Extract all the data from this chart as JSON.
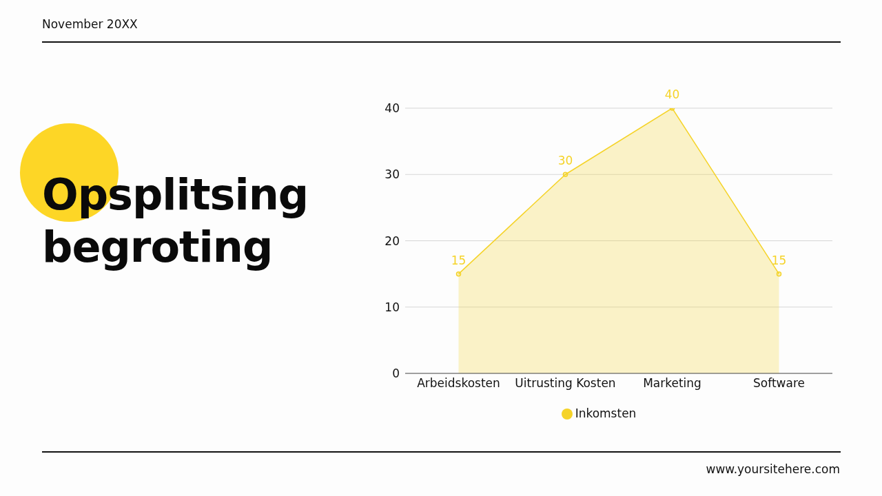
{
  "chart_data": {
    "type": "area",
    "title": "Opsplitsing begroting",
    "categories": [
      "Arbeidskosten",
      "Uitrusting Kosten",
      "Marketing",
      "Software"
    ],
    "series": [
      {
        "name": "Inkomsten",
        "color": "#f5d328",
        "values": [
          15,
          30,
          40,
          15
        ]
      }
    ],
    "ylim": [
      0,
      40
    ],
    "yticks": [
      0,
      10,
      20,
      30,
      40
    ],
    "grid": "y",
    "legend": "bottom",
    "data_labels": true,
    "marker": "circle",
    "annotations": [
      "November 20XX",
      "www.yoursitehere.com"
    ]
  }
}
